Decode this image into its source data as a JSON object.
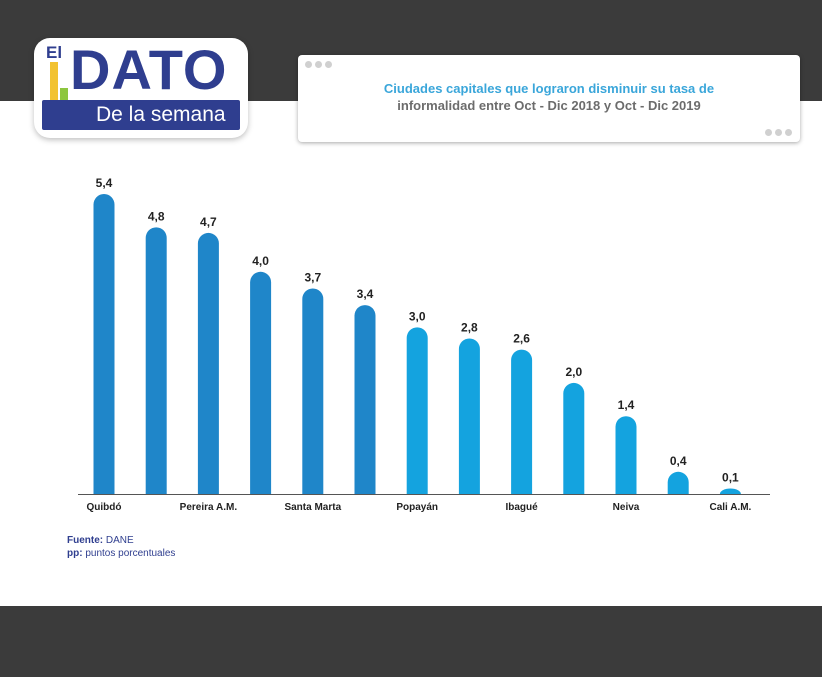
{
  "logo": {
    "prefix": "El",
    "main": "DATO",
    "sub": "De la semana",
    "colors": {
      "navy": "#2f3e8f",
      "yellow": "#f2c230",
      "green": "#8dc63f",
      "magenta": "#d1238c"
    }
  },
  "title": {
    "line1": "Ciudades capitales que lograron disminuir su tasa de",
    "line2": "informalidad entre Oct - Dic 2018 y Oct - Dic 2019"
  },
  "chart_data": {
    "type": "bar",
    "categories": [
      "Quibdó",
      "",
      "Pereira A.M.",
      "",
      "Santa Marta",
      "",
      "Popayán",
      "",
      "Ibagué",
      "",
      "Neiva",
      "",
      "Cali A.M."
    ],
    "values": [
      5.4,
      4.8,
      4.7,
      4.0,
      3.7,
      3.4,
      3.0,
      2.8,
      2.6,
      2.0,
      1.4,
      0.4,
      0.1
    ],
    "value_labels": [
      "5,4",
      "4,8",
      "4,7",
      "4,0",
      "3,7",
      "3,4",
      "3,0",
      "2,8",
      "2,6",
      "2,0",
      "1,4",
      "0,4",
      "0,1"
    ],
    "title": "",
    "xlabel": "",
    "ylabel": "",
    "ylim": [
      0,
      5.4
    ],
    "grid": false,
    "colors": {
      "dark": "#1f86c9",
      "light": "#14a3df"
    }
  },
  "notes": {
    "source_label": "Fuente:",
    "source_value": "DANE",
    "pp_label": "pp:",
    "pp_value": "puntos porcentuales"
  }
}
